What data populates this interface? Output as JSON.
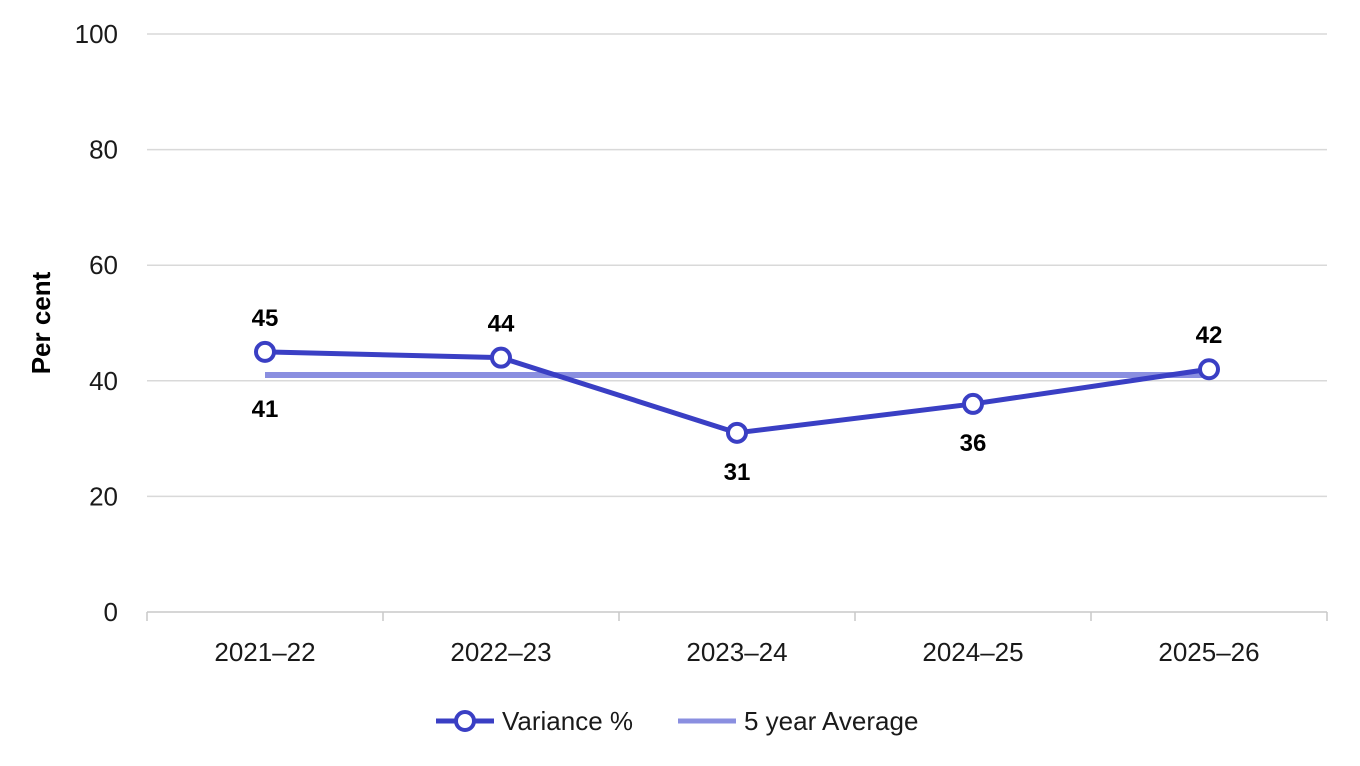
{
  "chart_data": {
    "type": "line",
    "categories": [
      "2021–22",
      "2022–23",
      "2023–24",
      "2024–25",
      "2025–26"
    ],
    "ylabel": "Per cent",
    "ylim": [
      0,
      100
    ],
    "yticks": [
      0,
      20,
      40,
      60,
      80,
      100
    ],
    "grid": true,
    "legend_position": "bottom",
    "series": [
      {
        "name": "Variance %",
        "values": [
          45,
          44,
          31,
          36,
          42
        ],
        "labels": [
          "45",
          "44",
          "31",
          "36",
          "42"
        ],
        "color": "#3a3fc4",
        "marker": "circle-open"
      },
      {
        "name": "5 year Average",
        "values": [
          41,
          41,
          41,
          41,
          41
        ],
        "labels": [
          "41"
        ],
        "color": "#8a8fe0",
        "marker": "none"
      }
    ]
  }
}
